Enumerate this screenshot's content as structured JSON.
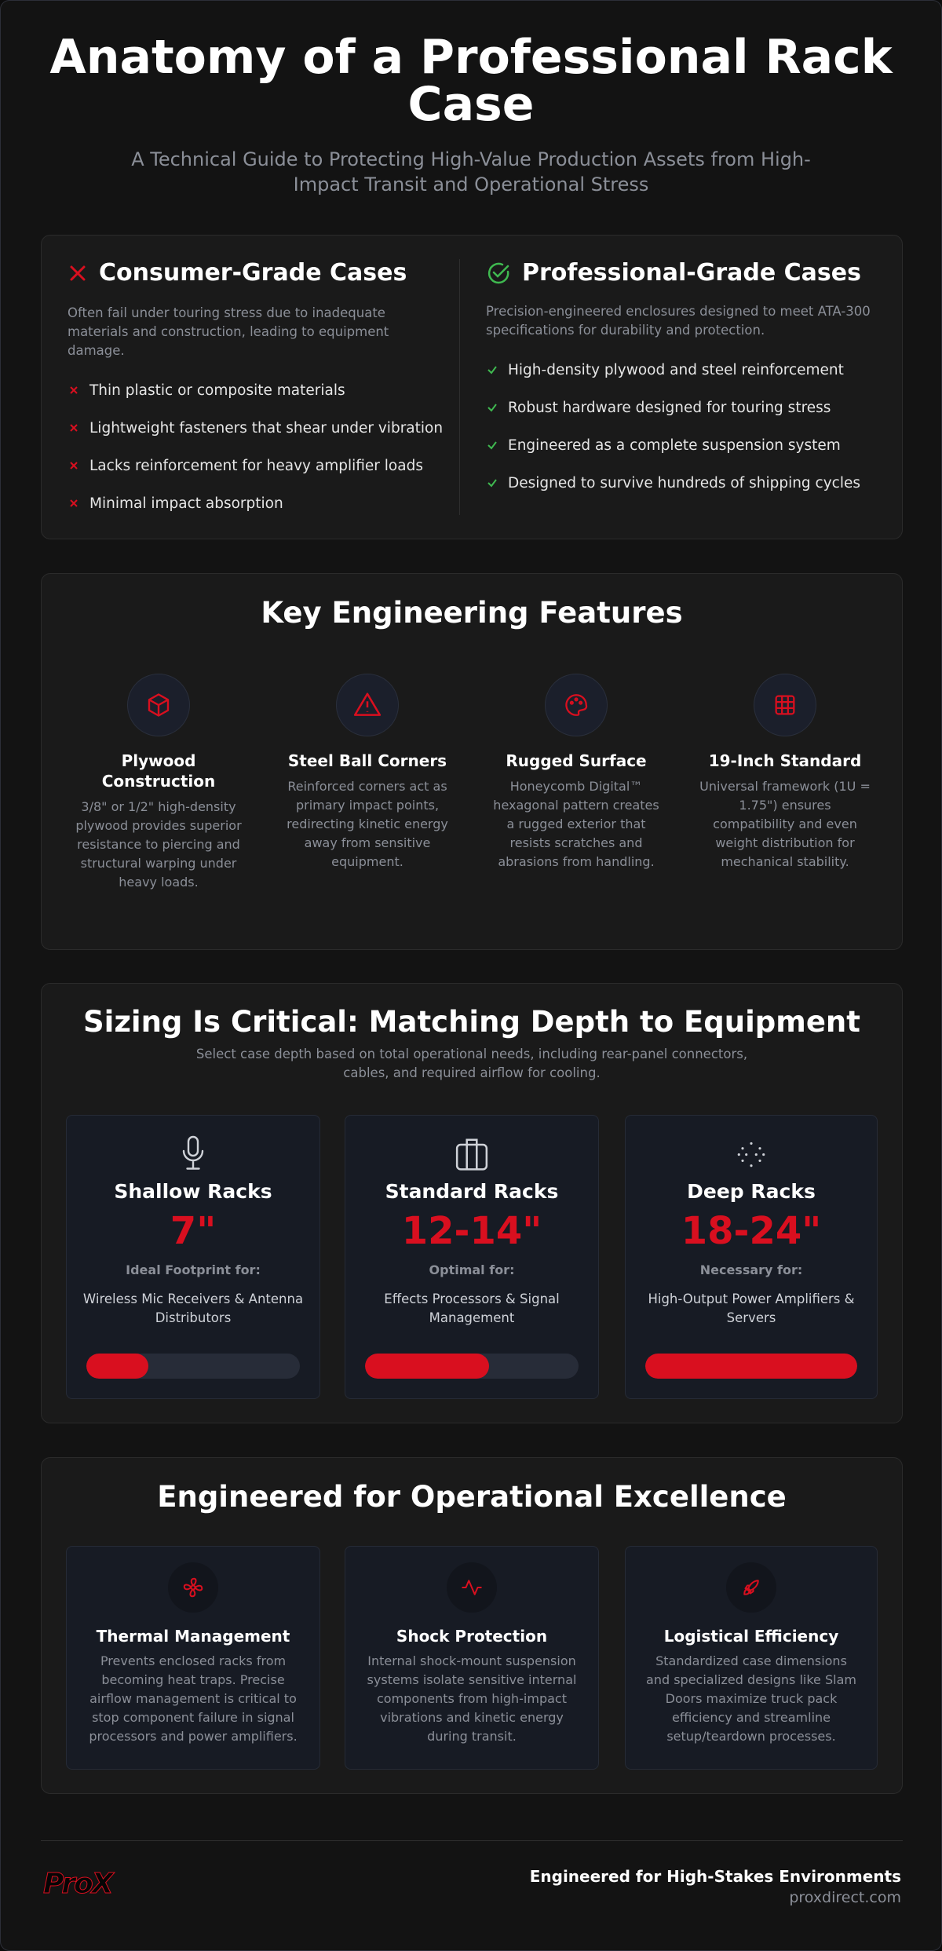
{
  "header": {
    "title": "Anatomy of a Professional Rack Case",
    "subtitle": "A Technical Guide to Protecting High-Value Production Assets from High-Impact Transit and Operational Stress"
  },
  "comparison": {
    "consumer": {
      "title": "Consumer-Grade Cases",
      "description": "Often fail under touring stress due to inadequate materials and construction, leading to equipment damage.",
      "items": [
        "Thin plastic or composite materials",
        "Lightweight fasteners that shear under vibration",
        "Lacks reinforcement for heavy amplifier loads",
        "Minimal impact absorption"
      ]
    },
    "professional": {
      "title": "Professional-Grade Cases",
      "description": "Precision-engineered enclosures designed to meet ATA-300 specifications for durability and protection.",
      "items": [
        "High-density plywood and steel reinforcement",
        "Robust hardware designed for touring stress",
        "Engineered as a complete suspension system",
        "Designed to survive hundreds of shipping cycles"
      ]
    }
  },
  "features": {
    "title": "Key Engineering Features",
    "items": [
      {
        "title": "Plywood Construction",
        "description": "3/8\" or 1/2\" high-density plywood provides superior resistance to piercing and structural warping under heavy loads."
      },
      {
        "title": "Steel Ball Corners",
        "description": "Reinforced corners act as primary impact points, redirecting kinetic energy away from sensitive equipment."
      },
      {
        "title": "Rugged Surface",
        "description": "Honeycomb Digital™ hexagonal pattern creates a rugged exterior that resists scratches and abrasions from handling."
      },
      {
        "title": "19-Inch Standard",
        "description": "Universal framework (1U = 1.75\") ensures compatibility and even weight distribution for mechanical stability."
      }
    ]
  },
  "sizing": {
    "title": "Sizing Is Critical: Matching Depth to Equipment",
    "subtitle": "Select case depth based on total operational needs, including rear-panel connectors, cables, and required airflow for cooling.",
    "racks": [
      {
        "name": "Shallow Racks",
        "size": "7\"",
        "label": "Ideal Footprint for:",
        "use": "Wireless Mic Receivers & Antenna Distributors"
      },
      {
        "name": "Standard Racks",
        "size": "12-14\"",
        "label": "Optimal for:",
        "use": "Effects Processors & Signal Management"
      },
      {
        "name": "Deep Racks",
        "size": "18-24\"",
        "label": "Necessary for:",
        "use": "High-Output Power Amplifiers & Servers"
      }
    ]
  },
  "excellence": {
    "title": "Engineered for Operational Excellence",
    "items": [
      {
        "title": "Thermal Management",
        "description": "Prevents enclosed racks from becoming heat traps. Precise airflow management is critical to stop component failure in signal processors and power amplifiers."
      },
      {
        "title": "Shock Protection",
        "description": "Internal shock-mount suspension systems isolate sensitive internal components from high-impact vibrations and kinetic energy during transit."
      },
      {
        "title": "Logistical Efficiency",
        "description": "Standardized case dimensions and specialized designs like Slam Doors maximize truck pack efficiency and streamline setup/teardown processes."
      }
    ]
  },
  "footer": {
    "logo": "ProX",
    "tagline": "Engineered for High-Stakes Environments",
    "url": "proxdirect.com"
  }
}
